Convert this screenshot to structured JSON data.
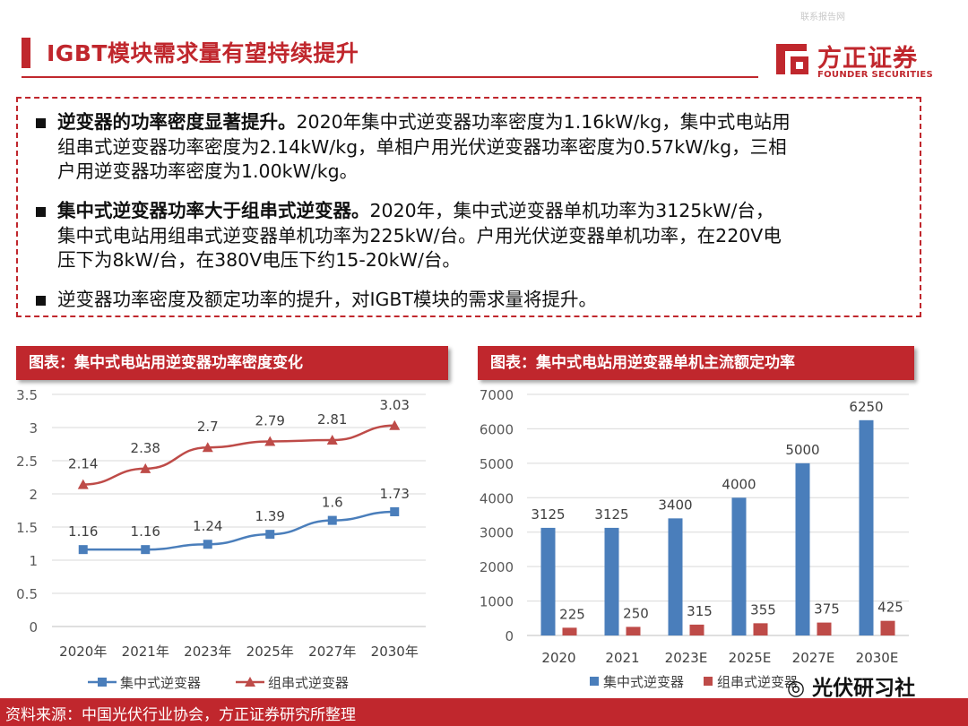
{
  "header": {
    "watermark_text": "联系报告网",
    "title": "IGBT模块需求量有望持续提升",
    "logo_cn": "方正证券",
    "logo_en": "FOUNDER SECURITIES"
  },
  "bullets": [
    {
      "bold": "逆变器的功率密度显著提升。",
      "lines": [
        "2020年集中式逆变器功率密度为1.16kW/kg，集中式电站用",
        "组串式逆变器功率密度为2.14kW/kg，单相户用光伏逆变器功率密度为0.57kW/kg，三相",
        "户用逆变器功率密度为1.00kW/kg。"
      ]
    },
    {
      "bold": "集中式逆变器功率大于组串式逆变器。",
      "lines": [
        "2020年，集中式逆变器单机功率为3125kW/台，",
        "集中式电站用组串式逆变器单机功率为225kW/台。户用光伏逆变器单机功率，在220V电",
        "压下为8kW/台，在380V电压下约15-20kW/台。"
      ]
    },
    {
      "bold": "",
      "lines": [
        "逆变器功率密度及额定功率的提升，对IGBT模块的需求量将提升。"
      ]
    }
  ],
  "colors": {
    "brand": "#c0272d",
    "series_blue": "#4a7ebb",
    "series_red": "#be4b48"
  },
  "chart_data": [
    {
      "type": "line",
      "title": "图表：集中式电站用逆变器功率密度变化",
      "categories": [
        "2020年",
        "2021年",
        "2023年",
        "2025年",
        "2027年",
        "2030年"
      ],
      "series": [
        {
          "name": "集中式逆变器",
          "values": [
            1.16,
            1.16,
            1.24,
            1.39,
            1.6,
            1.73
          ],
          "marker": "square"
        },
        {
          "name": "组串式逆变器",
          "values": [
            2.14,
            2.38,
            2.7,
            2.79,
            2.81,
            3.03
          ],
          "marker": "triangle"
        }
      ],
      "ylim": [
        0,
        3.5
      ],
      "yticks": [
        0,
        0.5,
        1,
        1.5,
        2,
        2.5,
        3,
        3.5
      ],
      "ytick_labels": [
        "0",
        "0.5",
        "1",
        "1.5",
        "2",
        "2.5",
        "3",
        "3.5"
      ],
      "label_values": {
        "s0": [
          "1.16",
          "1.16",
          "1.24",
          "1.39",
          "1.6",
          "1.73"
        ],
        "s1": [
          "2.14",
          "2.38",
          "2.7",
          "2.79",
          "2.81",
          "3.03"
        ]
      },
      "grid": "horizontal",
      "legend": "bottom"
    },
    {
      "type": "bar",
      "title": "图表：集中式电站用逆变器单机主流额定功率",
      "categories": [
        "2020",
        "2021",
        "2023E",
        "2025E",
        "2027E",
        "2030E"
      ],
      "series": [
        {
          "name": "集中式逆变器",
          "values": [
            3125,
            3125,
            3400,
            4000,
            5000,
            6250
          ]
        },
        {
          "name": "组串式逆变器",
          "values": [
            225,
            250,
            315,
            355,
            375,
            425
          ]
        }
      ],
      "ylim": [
        0,
        7000
      ],
      "yticks": [
        0,
        1000,
        2000,
        3000,
        4000,
        5000,
        6000,
        7000
      ],
      "ytick_labels": [
        "0",
        "1000",
        "2000",
        "3000",
        "4000",
        "5000",
        "6000",
        "7000"
      ],
      "grid": "horizontal",
      "legend": "bottom"
    }
  ],
  "footer": {
    "source": "资料来源：中国光伏行业协会，方正证券研究所整理",
    "wechat": "光伏研习社"
  }
}
